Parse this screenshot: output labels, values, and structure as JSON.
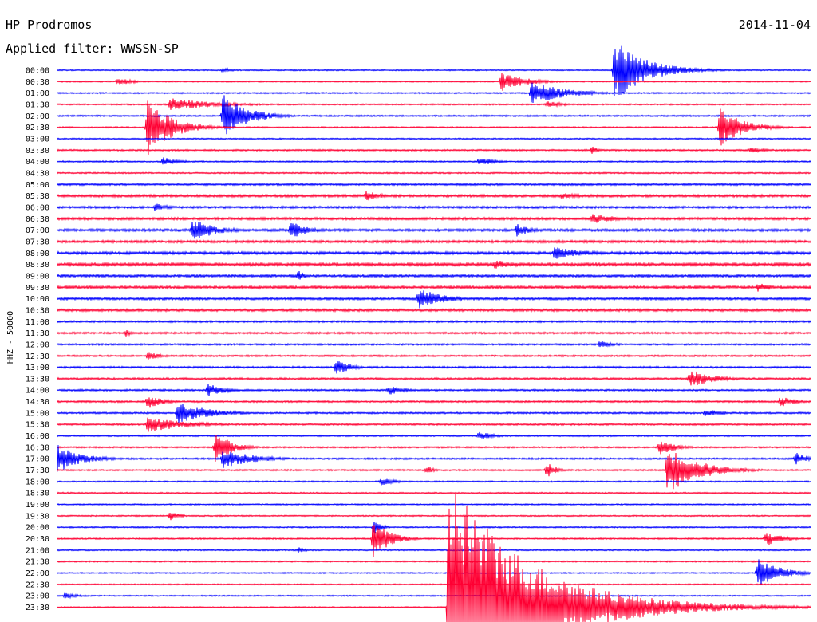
{
  "header": {
    "station": "HP Prodromos",
    "date": "2014-11-04",
    "filter": "Applied filter: WWSSN-SP"
  },
  "chart_data": {
    "type": "helicorder",
    "title": "HP Prodromos",
    "ylabel": "HHZ - 50000",
    "filter": "WWSSN-SP",
    "date": "2014-11-04",
    "colors": {
      "a": "#0000ff",
      "b": "#ff0033"
    },
    "time_labels": [
      "00:00",
      "00:30",
      "01:00",
      "01:30",
      "02:00",
      "02:30",
      "03:00",
      "03:30",
      "04:00",
      "04:30",
      "05:00",
      "05:30",
      "06:00",
      "06:30",
      "07:00",
      "07:30",
      "08:00",
      "08:30",
      "09:00",
      "09:30",
      "10:00",
      "10:30",
      "11:00",
      "11:30",
      "12:00",
      "12:30",
      "13:00",
      "13:30",
      "14:00",
      "14:30",
      "15:00",
      "15:30",
      "16:00",
      "16:30",
      "17:00",
      "17:30",
      "18:00",
      "18:30",
      "19:00",
      "19:30",
      "20:00",
      "20:30",
      "21:00",
      "21:30",
      "22:00",
      "22:30",
      "23:00",
      "23:30"
    ],
    "noise_level": [
      0.8,
      0.8,
      0.9,
      0.9,
      1.0,
      0.9,
      0.8,
      1.0,
      0.9,
      0.9,
      1.3,
      1.6,
      1.4,
      1.6,
      1.6,
      1.6,
      1.7,
      1.9,
      1.6,
      1.7,
      1.5,
      1.6,
      1.2,
      1.2,
      1.1,
      1.1,
      1.2,
      1.2,
      1.1,
      1.1,
      1.1,
      1.1,
      1.0,
      1.0,
      1.1,
      1.0,
      0.9,
      0.9,
      0.8,
      0.8,
      0.9,
      0.9,
      0.9,
      0.9,
      0.8,
      0.8,
      0.8,
      0.8
    ],
    "events": [
      {
        "line": 0,
        "t": 0.74,
        "amp": 40,
        "dur": 0.04
      },
      {
        "line": 0,
        "t": 0.22,
        "amp": 4,
        "dur": 0.01
      },
      {
        "line": 1,
        "t": 0.08,
        "amp": 5,
        "dur": 0.02
      },
      {
        "line": 1,
        "t": 0.59,
        "amp": 12,
        "dur": 0.03
      },
      {
        "line": 2,
        "t": 0.63,
        "amp": 16,
        "dur": 0.04
      },
      {
        "line": 3,
        "t": 0.15,
        "amp": 8,
        "dur": 0.06
      },
      {
        "line": 3,
        "t": 0.65,
        "amp": 5,
        "dur": 0.02
      },
      {
        "line": 4,
        "t": 0.22,
        "amp": 30,
        "dur": 0.03
      },
      {
        "line": 5,
        "t": 0.12,
        "amp": 36,
        "dur": 0.03
      },
      {
        "line": 5,
        "t": 0.88,
        "amp": 24,
        "dur": 0.03
      },
      {
        "line": 7,
        "t": 0.71,
        "amp": 5,
        "dur": 0.01
      },
      {
        "line": 7,
        "t": 0.92,
        "amp": 4,
        "dur": 0.02
      },
      {
        "line": 8,
        "t": 0.14,
        "amp": 6,
        "dur": 0.02
      },
      {
        "line": 8,
        "t": 0.56,
        "amp": 6,
        "dur": 0.02
      },
      {
        "line": 11,
        "t": 0.41,
        "amp": 7,
        "dur": 0.02
      },
      {
        "line": 11,
        "t": 0.67,
        "amp": 4,
        "dur": 0.03
      },
      {
        "line": 12,
        "t": 0.13,
        "amp": 5,
        "dur": 0.02
      },
      {
        "line": 13,
        "t": 0.71,
        "amp": 6,
        "dur": 0.04
      },
      {
        "line": 14,
        "t": 0.18,
        "amp": 14,
        "dur": 0.03
      },
      {
        "line": 14,
        "t": 0.31,
        "amp": 12,
        "dur": 0.02
      },
      {
        "line": 14,
        "t": 0.61,
        "amp": 8,
        "dur": 0.02
      },
      {
        "line": 16,
        "t": 0.66,
        "amp": 8,
        "dur": 0.04
      },
      {
        "line": 17,
        "t": 0.58,
        "amp": 6,
        "dur": 0.03
      },
      {
        "line": 18,
        "t": 0.32,
        "amp": 7,
        "dur": 0.01
      },
      {
        "line": 19,
        "t": 0.93,
        "amp": 6,
        "dur": 0.02
      },
      {
        "line": 20,
        "t": 0.48,
        "amp": 14,
        "dur": 0.03
      },
      {
        "line": 23,
        "t": 0.09,
        "amp": 5,
        "dur": 0.01
      },
      {
        "line": 24,
        "t": 0.72,
        "amp": 5,
        "dur": 0.02
      },
      {
        "line": 25,
        "t": 0.12,
        "amp": 5,
        "dur": 0.02
      },
      {
        "line": 26,
        "t": 0.37,
        "amp": 10,
        "dur": 0.02
      },
      {
        "line": 27,
        "t": 0.84,
        "amp": 12,
        "dur": 0.03
      },
      {
        "line": 28,
        "t": 0.2,
        "amp": 9,
        "dur": 0.02
      },
      {
        "line": 28,
        "t": 0.44,
        "amp": 6,
        "dur": 0.02
      },
      {
        "line": 29,
        "t": 0.12,
        "amp": 9,
        "dur": 0.02
      },
      {
        "line": 29,
        "t": 0.96,
        "amp": 7,
        "dur": 0.02
      },
      {
        "line": 30,
        "t": 0.16,
        "amp": 14,
        "dur": 0.04
      },
      {
        "line": 30,
        "t": 0.86,
        "amp": 6,
        "dur": 0.02
      },
      {
        "line": 31,
        "t": 0.12,
        "amp": 10,
        "dur": 0.05
      },
      {
        "line": 32,
        "t": 0.56,
        "amp": 6,
        "dur": 0.02
      },
      {
        "line": 33,
        "t": 0.21,
        "amp": 20,
        "dur": 0.02
      },
      {
        "line": 33,
        "t": 0.8,
        "amp": 10,
        "dur": 0.02
      },
      {
        "line": 34,
        "t": 0.0,
        "amp": 18,
        "dur": 0.03
      },
      {
        "line": 34,
        "t": 0.22,
        "amp": 12,
        "dur": 0.04
      },
      {
        "line": 34,
        "t": 0.98,
        "amp": 8,
        "dur": 0.02
      },
      {
        "line": 35,
        "t": 0.49,
        "amp": 6,
        "dur": 0.01
      },
      {
        "line": 35,
        "t": 0.65,
        "amp": 12,
        "dur": 0.01
      },
      {
        "line": 35,
        "t": 0.81,
        "amp": 30,
        "dur": 0.04
      },
      {
        "line": 36,
        "t": 0.43,
        "amp": 5,
        "dur": 0.02
      },
      {
        "line": 39,
        "t": 0.15,
        "amp": 8,
        "dur": 0.01
      },
      {
        "line": 40,
        "t": 0.42,
        "amp": 10,
        "dur": 0.01
      },
      {
        "line": 41,
        "t": 0.42,
        "amp": 26,
        "dur": 0.02
      },
      {
        "line": 41,
        "t": 0.94,
        "amp": 10,
        "dur": 0.02
      },
      {
        "line": 42,
        "t": 0.32,
        "amp": 4,
        "dur": 0.01
      },
      {
        "line": 44,
        "t": 0.93,
        "amp": 18,
        "dur": 0.03
      },
      {
        "line": 46,
        "t": 0.01,
        "amp": 4,
        "dur": 0.02
      },
      {
        "line": 47,
        "t": 0.52,
        "amp": 170,
        "dur": 0.1
      }
    ]
  }
}
